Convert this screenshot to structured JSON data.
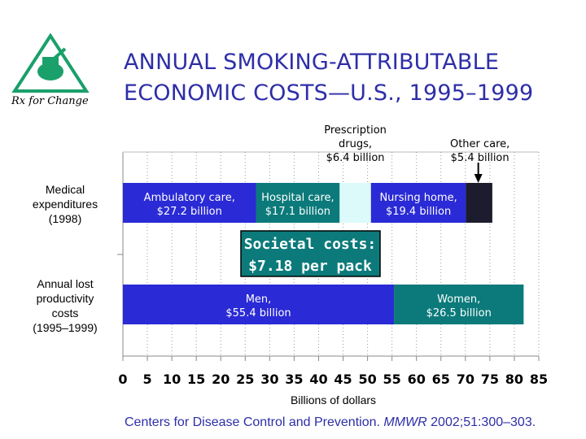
{
  "logo": {
    "text": "Rx for Change"
  },
  "title": {
    "line1": "ANNUAL SMOKING-ATTRIBUTABLE",
    "line2": "ECONOMIC COSTS—U.S., 1995–1999"
  },
  "colors": {
    "title": "#2e2ea8",
    "ambulatory": "#2a2ad6",
    "hospital": "#0c7a7a",
    "prescription": "#dcfafa",
    "nursing": "#2a2ad6",
    "other": "#1c1c2e",
    "men": "#2a2ad6",
    "women": "#0c7a7a",
    "callout": "#0c7a7a",
    "logo": "#1aa06a"
  },
  "chart_data": {
    "type": "bar",
    "orientation": "horizontal",
    "stacked": true,
    "categories": [
      "Medical expenditures (1998)",
      "Annual lost productivity costs (1995–1999)"
    ],
    "category_labels": [
      [
        "Medical",
        "expenditures",
        "(1998)"
      ],
      [
        "Annual lost",
        "productivity",
        "costs",
        "(1995–1999)"
      ]
    ],
    "series": [
      {
        "category": 0,
        "name": "Ambulatory care",
        "value": 27.2,
        "label": [
          "Ambulatory care,",
          "$27.2 billion"
        ],
        "color_key": "ambulatory",
        "label_position": "inside"
      },
      {
        "category": 0,
        "name": "Hospital care",
        "value": 17.1,
        "label": [
          "Hospital care,",
          "$17.1 billion"
        ],
        "color_key": "hospital",
        "label_position": "inside"
      },
      {
        "category": 0,
        "name": "Prescription drugs",
        "value": 6.4,
        "label": [
          "Prescription",
          "drugs,",
          "$6.4 billion"
        ],
        "color_key": "prescription",
        "label_position": "above"
      },
      {
        "category": 0,
        "name": "Nursing home",
        "value": 19.4,
        "label": [
          "Nursing home,",
          "$19.4 billion"
        ],
        "color_key": "nursing",
        "label_position": "inside"
      },
      {
        "category": 0,
        "name": "Other care",
        "value": 5.4,
        "label": [
          "Other care,",
          "$5.4 billion"
        ],
        "color_key": "other",
        "label_position": "above-arrow"
      },
      {
        "category": 1,
        "name": "Men",
        "value": 55.4,
        "label": [
          "Men,",
          "$55.4 billion"
        ],
        "color_key": "men",
        "label_position": "inside"
      },
      {
        "category": 1,
        "name": "Women",
        "value": 26.5,
        "label": [
          "Women,",
          "$26.5 billion"
        ],
        "color_key": "women",
        "label_position": "inside"
      }
    ],
    "xlim": [
      0,
      85
    ],
    "xticks": [
      0,
      5,
      10,
      15,
      20,
      25,
      30,
      35,
      40,
      45,
      50,
      55,
      60,
      65,
      70,
      75,
      80,
      85
    ],
    "xlabel": "Billions of dollars",
    "grid": "vertical dotted",
    "callout": [
      "Societal costs:",
      "$7.18 per pack"
    ]
  },
  "footer": {
    "before": "Centers for Disease Control and Prevention. ",
    "journal": "MMWR",
    "after": " 2002;51:300–303."
  }
}
